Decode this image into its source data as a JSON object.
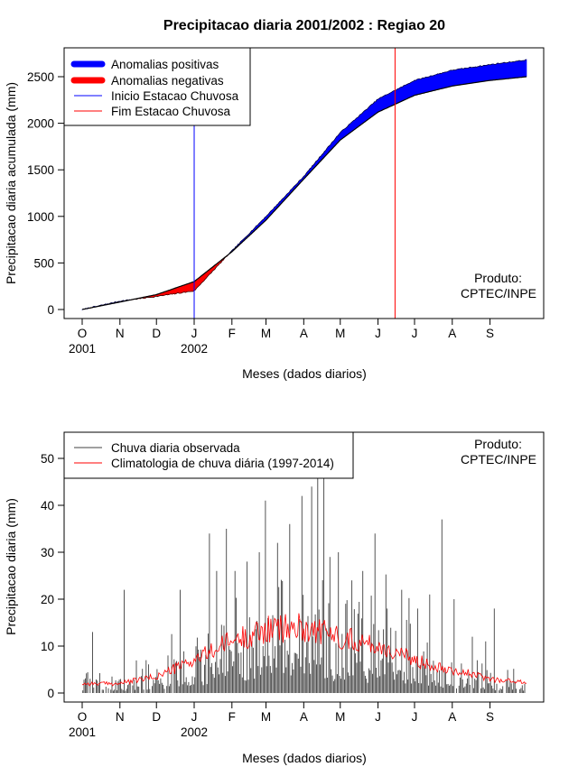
{
  "chart_data": [
    {
      "type": "area",
      "title": "Precipitacao diaria 2001/2002 : Regiao 20",
      "xlabel": "Meses (dados diarios)",
      "ylabel": "Precipitacao diaria acumulada (mm)",
      "ylim": [
        0,
        2700
      ],
      "yticks": [
        0,
        500,
        1000,
        1500,
        2000,
        2500
      ],
      "month_labels": [
        "O",
        "N",
        "D",
        "J",
        "F",
        "M",
        "A",
        "M",
        "J",
        "J",
        "A",
        "S"
      ],
      "year_labels": [
        {
          "month_index": 0,
          "text": "2001"
        },
        {
          "month_index": 3,
          "text": "2002"
        }
      ],
      "legend": {
        "position": "top-left",
        "items": [
          {
            "label": "Anomalias positivas",
            "color": "#0000ff",
            "style": "thick"
          },
          {
            "label": "Anomalias negativas",
            "color": "#ff0000",
            "style": "thick"
          },
          {
            "label": "Inicio Estacao Chuvosa",
            "color": "#0000ff",
            "style": "thin"
          },
          {
            "label": "Fim Estacao Chuvosa",
            "color": "#ff0000",
            "style": "thin"
          }
        ]
      },
      "annotation": [
        "Produto:",
        "CPTEC/INPE"
      ],
      "rainy_season_start_day": 92,
      "rainy_season_end_day": 257,
      "climatology_cumulative": {
        "day": [
          0,
          31,
          61,
          92,
          123,
          151,
          182,
          212,
          243,
          273,
          304,
          335,
          365
        ],
        "mm": [
          0,
          80,
          160,
          300,
          620,
          960,
          1400,
          1820,
          2120,
          2300,
          2400,
          2460,
          2500
        ]
      },
      "observed_cumulative": {
        "day": [
          0,
          31,
          61,
          92,
          123,
          151,
          182,
          212,
          243,
          273,
          304,
          335,
          365
        ],
        "mm": [
          0,
          90,
          140,
          200,
          630,
          1000,
          1430,
          1900,
          2260,
          2460,
          2570,
          2630,
          2680
        ]
      }
    },
    {
      "type": "line",
      "xlabel": "Meses (dados diarios)",
      "ylabel": "Precipitacao diaria (mm)",
      "ylim": [
        0,
        55
      ],
      "yticks": [
        0,
        10,
        20,
        30,
        40,
        50
      ],
      "month_labels": [
        "O",
        "N",
        "D",
        "J",
        "F",
        "M",
        "A",
        "M",
        "J",
        "J",
        "A",
        "S"
      ],
      "year_labels": [
        {
          "month_index": 0,
          "text": "2001"
        },
        {
          "month_index": 3,
          "text": "2002"
        }
      ],
      "legend": {
        "position": "top-left",
        "items": [
          {
            "label": "Chuva diaria observada",
            "color": "#404040",
            "style": "thin"
          },
          {
            "label": "Climatologia de chuva diária (1997-2014)",
            "color": "#ff0000",
            "style": "thin"
          }
        ]
      },
      "annotation": [
        "Produto:",
        "CPTEC/INPE"
      ],
      "series": [
        {
          "name": "Chuva diaria observada",
          "kind": "bars",
          "clipped_at": 55,
          "peaks": [
            {
              "day": 3,
              "mm": 4.2
            },
            {
              "day": 8,
              "mm": 13
            },
            {
              "day": 34,
              "mm": 22
            },
            {
              "day": 52,
              "mm": 7
            },
            {
              "day": 70,
              "mm": 8
            },
            {
              "day": 80,
              "mm": 22
            },
            {
              "day": 100,
              "mm": 6
            },
            {
              "day": 104,
              "mm": 34
            },
            {
              "day": 110,
              "mm": 26
            },
            {
              "day": 118,
              "mm": 35
            },
            {
              "day": 125,
              "mm": 26
            },
            {
              "day": 135,
              "mm": 28
            },
            {
              "day": 145,
              "mm": 30
            },
            {
              "day": 150,
              "mm": 41
            },
            {
              "day": 160,
              "mm": 32
            },
            {
              "day": 170,
              "mm": 36
            },
            {
              "day": 180,
              "mm": 42
            },
            {
              "day": 188,
              "mm": 44
            },
            {
              "day": 193,
              "mm": 55
            },
            {
              "day": 198,
              "mm": 47
            },
            {
              "day": 203,
              "mm": 29
            },
            {
              "day": 210,
              "mm": 30
            },
            {
              "day": 221,
              "mm": 24
            },
            {
              "day": 230,
              "mm": 26
            },
            {
              "day": 240,
              "mm": 34
            },
            {
              "day": 250,
              "mm": 18
            },
            {
              "day": 262,
              "mm": 22
            },
            {
              "day": 275,
              "mm": 18
            },
            {
              "day": 285,
              "mm": 21
            },
            {
              "day": 295,
              "mm": 37
            },
            {
              "day": 305,
              "mm": 20
            },
            {
              "day": 320,
              "mm": 12
            },
            {
              "day": 331,
              "mm": 11
            },
            {
              "day": 338,
              "mm": 18
            }
          ]
        },
        {
          "name": "Climatologia de chuva diária (1997-2014)",
          "kind": "line",
          "day": [
            0,
            30,
            61,
            92,
            122,
            152,
            182,
            212,
            243,
            273,
            304,
            335,
            365
          ],
          "mm": [
            2.0,
            2.0,
            3.5,
            7.0,
            11.0,
            13.5,
            14.0,
            12.0,
            10.0,
            7.0,
            5.0,
            3.0,
            2.2
          ]
        }
      ]
    }
  ]
}
